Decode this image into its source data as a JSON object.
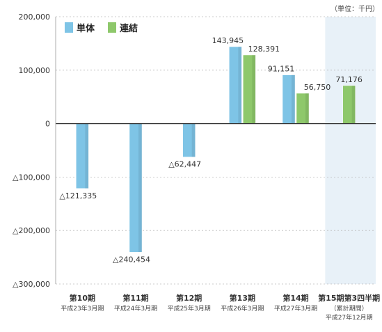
{
  "chart_data": {
    "type": "bar",
    "unit_label": "（単位：千円）",
    "categories": [
      {
        "label": "第10期",
        "sub": [
          "平成23年3月期"
        ]
      },
      {
        "label": "第11期",
        "sub": [
          "平成24年3月期"
        ]
      },
      {
        "label": "第12期",
        "sub": [
          "平成25年3月期"
        ]
      },
      {
        "label": "第13期",
        "sub": [
          "平成26年3月期"
        ]
      },
      {
        "label": "第14期",
        "sub": [
          "平成27年3月期"
        ]
      },
      {
        "label": "第15期第3四半期",
        "sub": [
          "（累計期間）",
          "平成27年12月期"
        ]
      }
    ],
    "series": [
      {
        "name": "単体",
        "color": "#7ec4e6",
        "values": [
          -121335,
          -240454,
          -62447,
          143945,
          91151,
          null
        ],
        "labels": [
          "△121,335",
          "△240,454",
          "△62,447",
          "143,945",
          "91,151",
          ""
        ]
      },
      {
        "name": "連結",
        "color": "#8ec86b",
        "values": [
          null,
          null,
          null,
          128391,
          56750,
          71176
        ],
        "labels": [
          "",
          "",
          "",
          "128,391",
          "56,750",
          "71,176"
        ]
      }
    ],
    "ylim": [
      -300000,
      200000
    ],
    "yticks": [
      200000,
      100000,
      0,
      -100000,
      -200000,
      -300000
    ],
    "ytick_labels": [
      "200,000",
      "100,000",
      "0",
      "△100,000",
      "△200,000",
      "△300,000"
    ],
    "grid": true,
    "legend_position": "top-left",
    "highlight_category_index": 5,
    "highlight_color": "#e8f1f8"
  }
}
